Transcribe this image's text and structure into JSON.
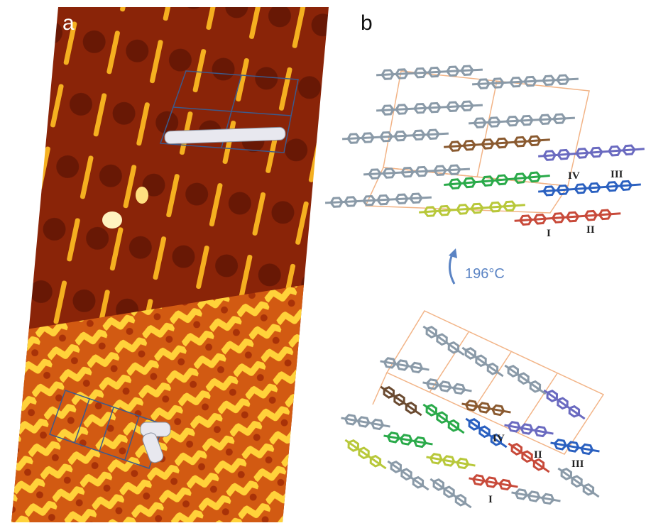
{
  "panels": [
    {
      "label": "a"
    },
    {
      "label": "b",
      "annotation": "196°C",
      "upper_structure": {
        "molecule_labels": [
          "I",
          "II",
          "III",
          "IV"
        ]
      },
      "lower_structure": {
        "molecule_labels": [
          "I",
          "II",
          "III",
          "IV"
        ]
      }
    }
  ]
}
